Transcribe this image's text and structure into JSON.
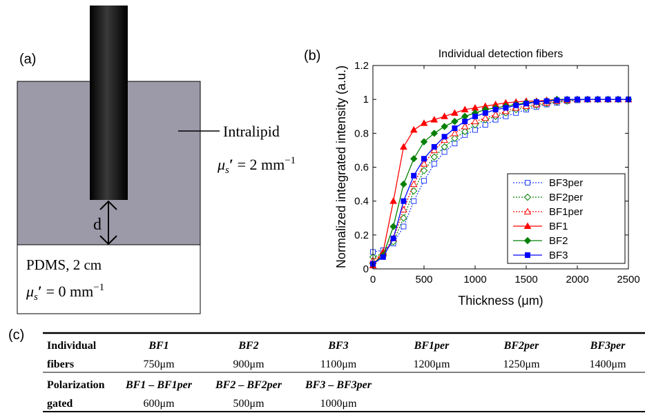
{
  "panel_a": {
    "label": "(a)",
    "medium_label": "Intralipid",
    "distance_label": "d",
    "substrate_label": "PDMS, 2 cm",
    "medium_coeff": {
      "symbol": "μ",
      "sub": "s",
      "prime": "′",
      "rest": " = 2 mm",
      "sup": "−1"
    },
    "substrate_coeff": {
      "symbol": "μ",
      "sub": "s",
      "prime": "′",
      "rest": " = 0 mm",
      "sup": "−1"
    }
  },
  "panel_b": {
    "label": "(b)"
  },
  "chart_data": {
    "type": "line",
    "title": "Individual detection fibers",
    "x_label": "Thickness (μm)",
    "y_label": "Normalized integrated intensity (a.u.)",
    "x": [
      0,
      100,
      200,
      300,
      400,
      500,
      600,
      700,
      800,
      900,
      1000,
      1100,
      1200,
      1300,
      1400,
      1500,
      1600,
      1700,
      1800,
      1900,
      2000,
      2100,
      2200,
      2300,
      2400,
      2500
    ],
    "xlim": [
      0,
      2500
    ],
    "ylim": [
      0,
      1.2
    ],
    "xticks": [
      0,
      500,
      1000,
      1500,
      2000,
      2500
    ],
    "yticks": [
      0,
      0.2,
      0.4,
      0.6,
      0.8,
      1,
      1.2
    ],
    "legend": "lower right",
    "series": [
      {
        "name": "BF3per",
        "color": "#1f3fff",
        "marker": "square",
        "filled": false,
        "dashed": true,
        "values": [
          0.1,
          0.11,
          0.15,
          0.25,
          0.4,
          0.52,
          0.62,
          0.69,
          0.74,
          0.79,
          0.82,
          0.85,
          0.88,
          0.9,
          0.92,
          0.94,
          0.955,
          0.97,
          0.98,
          0.99,
          0.995,
          1,
          1,
          1,
          1,
          1
        ]
      },
      {
        "name": "BF2per",
        "color": "#008000",
        "marker": "diamond",
        "filled": false,
        "dashed": true,
        "values": [
          0.07,
          0.09,
          0.16,
          0.3,
          0.46,
          0.58,
          0.66,
          0.72,
          0.77,
          0.81,
          0.85,
          0.88,
          0.9,
          0.92,
          0.94,
          0.95,
          0.965,
          0.975,
          0.985,
          0.99,
          1,
          1,
          1,
          1,
          1,
          1
        ]
      },
      {
        "name": "BF1per",
        "color": "#ff0000",
        "marker": "triangle",
        "filled": false,
        "dashed": true,
        "values": [
          0.05,
          0.09,
          0.18,
          0.35,
          0.5,
          0.62,
          0.7,
          0.76,
          0.8,
          0.84,
          0.87,
          0.89,
          0.91,
          0.93,
          0.95,
          0.96,
          0.97,
          0.98,
          0.99,
          0.995,
          1,
          1,
          1,
          1,
          1,
          1
        ]
      },
      {
        "name": "BF1",
        "color": "#ff0000",
        "marker": "triangle",
        "filled": true,
        "dashed": false,
        "values": [
          0.02,
          0.1,
          0.4,
          0.72,
          0.82,
          0.86,
          0.88,
          0.9,
          0.92,
          0.94,
          0.95,
          0.96,
          0.97,
          0.98,
          0.985,
          0.99,
          0.99,
          0.995,
          1,
          1,
          1,
          1,
          1,
          1,
          1,
          1
        ]
      },
      {
        "name": "BF2",
        "color": "#008000",
        "marker": "diamond",
        "filled": true,
        "dashed": false,
        "values": [
          0.03,
          0.08,
          0.25,
          0.5,
          0.65,
          0.75,
          0.8,
          0.84,
          0.87,
          0.9,
          0.92,
          0.94,
          0.95,
          0.96,
          0.97,
          0.98,
          0.985,
          0.99,
          1,
          1,
          1,
          1,
          1,
          1,
          1,
          1
        ]
      },
      {
        "name": "BF3",
        "color": "#0000ff",
        "marker": "square",
        "filled": true,
        "dashed": false,
        "values": [
          0.03,
          0.07,
          0.18,
          0.4,
          0.55,
          0.65,
          0.72,
          0.78,
          0.83,
          0.87,
          0.9,
          0.92,
          0.94,
          0.95,
          0.965,
          0.975,
          0.985,
          0.99,
          0.995,
          1,
          1,
          1,
          1,
          1,
          1,
          1
        ]
      }
    ]
  },
  "panel_c": {
    "label": "(c)",
    "rows": [
      {
        "label": [
          "Individual",
          "fibers"
        ],
        "cells": [
          [
            "BF1",
            "750μm"
          ],
          [
            "BF2",
            "900μm"
          ],
          [
            "BF3",
            "1100μm"
          ],
          [
            "BF1per",
            "1200μm"
          ],
          [
            "BF2per",
            "1250μm"
          ],
          [
            "BF3per",
            "1400μm"
          ]
        ]
      },
      {
        "label": [
          "Polarization",
          "gated"
        ],
        "cells": [
          [
            "BF1 – BF1per",
            "600μm"
          ],
          [
            "BF2 – BF2per",
            "500μm"
          ],
          [
            "BF3 – BF3per",
            "1000μm"
          ]
        ]
      }
    ]
  }
}
